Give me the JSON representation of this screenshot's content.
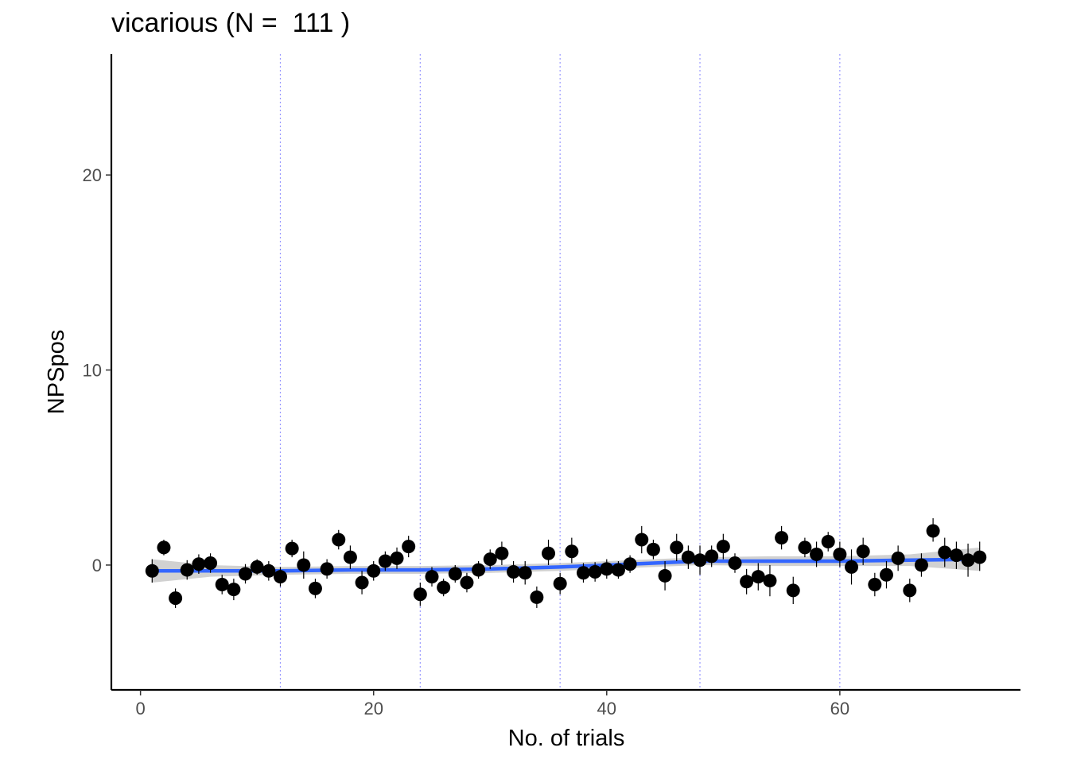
{
  "chart_data": {
    "type": "scatter",
    "title": "vicarious (N =  111 )",
    "xlabel": "No. of trials",
    "ylabel": "NPSpos",
    "xlim": [
      -2.5,
      75.5
    ],
    "ylim": [
      -6.4,
      26.2
    ],
    "xticks": [
      0,
      20,
      40,
      60
    ],
    "yticks": [
      0,
      10,
      20
    ],
    "grid": false,
    "vlines": [
      12,
      24,
      36,
      48,
      60
    ],
    "colors": {
      "points": "#000000",
      "smooth_line": "#3366ff",
      "ribbon": "#bdbdbd",
      "vlines": "#9999ff",
      "axis": "#000000"
    },
    "points": [
      {
        "x": 1,
        "y": -0.3,
        "lo": -0.9,
        "hi": 0.3
      },
      {
        "x": 2,
        "y": 0.9,
        "lo": 0.5,
        "hi": 1.3
      },
      {
        "x": 3,
        "y": -1.7,
        "lo": -2.2,
        "hi": -1.2
      },
      {
        "x": 4,
        "y": -0.25,
        "lo": -0.75,
        "hi": 0.25
      },
      {
        "x": 5,
        "y": 0.05,
        "lo": -0.45,
        "hi": 0.55
      },
      {
        "x": 6,
        "y": 0.1,
        "lo": -0.4,
        "hi": 0.6
      },
      {
        "x": 7,
        "y": -1.0,
        "lo": -1.5,
        "hi": -0.5
      },
      {
        "x": 8,
        "y": -1.25,
        "lo": -1.8,
        "hi": -0.7
      },
      {
        "x": 9,
        "y": -0.45,
        "lo": -0.95,
        "hi": 0.05
      },
      {
        "x": 10,
        "y": -0.1,
        "lo": -0.5,
        "hi": 0.3
      },
      {
        "x": 11,
        "y": -0.3,
        "lo": -0.8,
        "hi": 0.2
      },
      {
        "x": 12,
        "y": -0.6,
        "lo": -1.1,
        "hi": -0.1
      },
      {
        "x": 13,
        "y": 0.85,
        "lo": 0.4,
        "hi": 1.3
      },
      {
        "x": 14,
        "y": 0.0,
        "lo": -0.7,
        "hi": 0.7
      },
      {
        "x": 15,
        "y": -1.2,
        "lo": -1.7,
        "hi": -0.7
      },
      {
        "x": 16,
        "y": -0.2,
        "lo": -0.7,
        "hi": 0.3
      },
      {
        "x": 17,
        "y": 1.3,
        "lo": 0.8,
        "hi": 1.8
      },
      {
        "x": 18,
        "y": 0.4,
        "lo": -0.2,
        "hi": 1.0
      },
      {
        "x": 19,
        "y": -0.9,
        "lo": -1.5,
        "hi": -0.3
      },
      {
        "x": 20,
        "y": -0.3,
        "lo": -0.8,
        "hi": 0.2
      },
      {
        "x": 21,
        "y": 0.2,
        "lo": -0.3,
        "hi": 0.7
      },
      {
        "x": 22,
        "y": 0.35,
        "lo": -0.2,
        "hi": 0.9
      },
      {
        "x": 23,
        "y": 0.95,
        "lo": 0.4,
        "hi": 1.5
      },
      {
        "x": 24,
        "y": -1.5,
        "lo": -2.1,
        "hi": -0.9
      },
      {
        "x": 25,
        "y": -0.6,
        "lo": -1.1,
        "hi": -0.1
      },
      {
        "x": 26,
        "y": -1.15,
        "lo": -1.6,
        "hi": -0.7
      },
      {
        "x": 27,
        "y": -0.45,
        "lo": -0.9,
        "hi": 0.0
      },
      {
        "x": 28,
        "y": -0.9,
        "lo": -1.4,
        "hi": -0.4
      },
      {
        "x": 29,
        "y": -0.25,
        "lo": -0.7,
        "hi": 0.2
      },
      {
        "x": 30,
        "y": 0.3,
        "lo": -0.2,
        "hi": 0.8
      },
      {
        "x": 31,
        "y": 0.6,
        "lo": 0.0,
        "hi": 1.2
      },
      {
        "x": 32,
        "y": -0.35,
        "lo": -0.9,
        "hi": 0.2
      },
      {
        "x": 33,
        "y": -0.4,
        "lo": -1.0,
        "hi": 0.2
      },
      {
        "x": 34,
        "y": -1.65,
        "lo": -2.2,
        "hi": -1.1
      },
      {
        "x": 35,
        "y": 0.6,
        "lo": 0.0,
        "hi": 1.3
      },
      {
        "x": 36,
        "y": -0.95,
        "lo": -1.5,
        "hi": -0.4
      },
      {
        "x": 37,
        "y": 0.7,
        "lo": 0.1,
        "hi": 1.4
      },
      {
        "x": 38,
        "y": -0.4,
        "lo": -0.9,
        "hi": 0.1
      },
      {
        "x": 39,
        "y": -0.35,
        "lo": -0.85,
        "hi": 0.15
      },
      {
        "x": 40,
        "y": -0.2,
        "lo": -0.7,
        "hi": 0.3
      },
      {
        "x": 41,
        "y": -0.25,
        "lo": -0.7,
        "hi": 0.2
      },
      {
        "x": 42,
        "y": 0.05,
        "lo": -0.4,
        "hi": 0.5
      },
      {
        "x": 43,
        "y": 1.3,
        "lo": 0.6,
        "hi": 2.0
      },
      {
        "x": 44,
        "y": 0.8,
        "lo": 0.3,
        "hi": 1.3
      },
      {
        "x": 45,
        "y": -0.55,
        "lo": -1.3,
        "hi": 0.2
      },
      {
        "x": 46,
        "y": 0.9,
        "lo": 0.2,
        "hi": 1.6
      },
      {
        "x": 47,
        "y": 0.4,
        "lo": -0.2,
        "hi": 1.0
      },
      {
        "x": 48,
        "y": 0.25,
        "lo": -0.5,
        "hi": 1.0
      },
      {
        "x": 49,
        "y": 0.45,
        "lo": -0.1,
        "hi": 1.0
      },
      {
        "x": 50,
        "y": 0.95,
        "lo": 0.3,
        "hi": 1.6
      },
      {
        "x": 51,
        "y": 0.1,
        "lo": -0.4,
        "hi": 0.6
      },
      {
        "x": 52,
        "y": -0.85,
        "lo": -1.5,
        "hi": -0.2
      },
      {
        "x": 53,
        "y": -0.6,
        "lo": -1.3,
        "hi": 0.1
      },
      {
        "x": 54,
        "y": -0.8,
        "lo": -1.6,
        "hi": 0.0
      },
      {
        "x": 55,
        "y": 1.4,
        "lo": 0.8,
        "hi": 2.0
      },
      {
        "x": 56,
        "y": -1.3,
        "lo": -2.0,
        "hi": -0.6
      },
      {
        "x": 57,
        "y": 0.9,
        "lo": 0.4,
        "hi": 1.4
      },
      {
        "x": 58,
        "y": 0.55,
        "lo": -0.1,
        "hi": 1.2
      },
      {
        "x": 59,
        "y": 1.2,
        "lo": 0.7,
        "hi": 1.7
      },
      {
        "x": 60,
        "y": 0.55,
        "lo": -0.1,
        "hi": 1.2
      },
      {
        "x": 61,
        "y": -0.1,
        "lo": -1.0,
        "hi": 0.8
      },
      {
        "x": 62,
        "y": 0.7,
        "lo": 0.0,
        "hi": 1.4
      },
      {
        "x": 63,
        "y": -1.0,
        "lo": -1.6,
        "hi": -0.4
      },
      {
        "x": 64,
        "y": -0.5,
        "lo": -1.2,
        "hi": 0.2
      },
      {
        "x": 65,
        "y": 0.35,
        "lo": -0.3,
        "hi": 1.0
      },
      {
        "x": 66,
        "y": -1.3,
        "lo": -1.9,
        "hi": -0.7
      },
      {
        "x": 67,
        "y": 0.0,
        "lo": -0.6,
        "hi": 0.6
      },
      {
        "x": 68,
        "y": 1.75,
        "lo": 1.2,
        "hi": 2.4
      },
      {
        "x": 69,
        "y": 0.65,
        "lo": -0.1,
        "hi": 1.4
      },
      {
        "x": 70,
        "y": 0.5,
        "lo": -0.2,
        "hi": 1.2
      },
      {
        "x": 71,
        "y": 0.25,
        "lo": -0.6,
        "hi": 1.1
      },
      {
        "x": 72,
        "y": 0.4,
        "lo": -0.3,
        "hi": 1.2
      }
    ],
    "smooth": {
      "x": [
        1,
        6,
        12,
        18,
        24,
        30,
        36,
        40,
        44,
        48,
        54,
        60,
        66,
        72
      ],
      "y": [
        -0.3,
        -0.3,
        -0.3,
        -0.25,
        -0.25,
        -0.2,
        -0.1,
        0.0,
        0.1,
        0.2,
        0.2,
        0.2,
        0.25,
        0.3
      ],
      "lo": [
        -0.9,
        -0.6,
        -0.5,
        -0.45,
        -0.45,
        -0.4,
        -0.3,
        -0.2,
        -0.1,
        0.0,
        -0.05,
        -0.05,
        -0.05,
        -0.3
      ],
      "hi": [
        0.3,
        0.0,
        -0.1,
        -0.05,
        -0.05,
        0.0,
        0.1,
        0.2,
        0.3,
        0.4,
        0.45,
        0.45,
        0.55,
        0.9
      ]
    }
  }
}
